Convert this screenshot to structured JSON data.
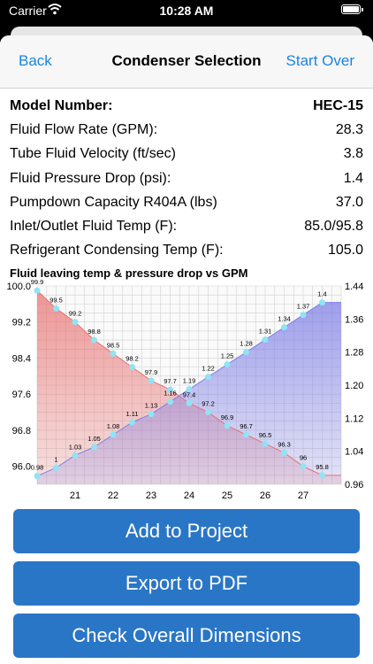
{
  "status_bar": {
    "carrier": "Carrier",
    "time": "10:28 AM"
  },
  "nav": {
    "back": "Back",
    "title": "Condenser Selection",
    "start_over": "Start Over"
  },
  "specs": [
    {
      "label": "Model Number:",
      "value": "HEC-15",
      "bold": true
    },
    {
      "label": "Fluid Flow Rate (GPM):",
      "value": "28.3"
    },
    {
      "label": "Tube Fluid Velocity (ft/sec)",
      "value": "3.8"
    },
    {
      "label": "Fluid Pressure Drop (psi):",
      "value": "1.4"
    },
    {
      "label": "Pumpdown Capacity R404A (lbs)",
      "value": "37.0"
    },
    {
      "label": "Inlet/Outlet Fluid Temp (F):",
      "value": "85.0/95.8"
    },
    {
      "label": "Refrigerant Condensing Temp (F):",
      "value": "105.0"
    }
  ],
  "buttons": {
    "add_to_project": "Add to Project",
    "export_pdf": "Export to PDF",
    "check_dimensions": "Check Overall Dimensions"
  },
  "chart_data": {
    "type": "area",
    "title": "Fluid leaving temp & pressure drop vs GPM",
    "x": [
      20.0,
      20.5,
      21.0,
      21.5,
      22.0,
      22.5,
      23.0,
      23.5,
      24.0,
      24.5,
      25.0,
      25.5,
      26.0,
      26.5,
      27.0,
      27.5,
      28.0
    ],
    "xticks": [
      "21",
      "22",
      "23",
      "24",
      "25",
      "26",
      "27"
    ],
    "xlim": [
      20,
      28
    ],
    "series": [
      {
        "name": "Fluid Leaving Temp",
        "axis": "left",
        "color": "#e87373",
        "values": [
          99.9,
          99.5,
          99.2,
          98.8,
          98.5,
          98.2,
          97.9,
          97.7,
          97.4,
          97.2,
          96.9,
          96.7,
          96.5,
          96.3,
          96,
          95.8,
          95.8
        ],
        "labels": [
          "99.9",
          "99.5",
          "99.2",
          "98.8",
          "98.5",
          "98.2",
          "97.9",
          "97.7",
          "97.4",
          "97.2",
          "96.9",
          "96.7",
          "96.5",
          "96.3",
          "96",
          "95.8",
          ""
        ]
      },
      {
        "name": "Fluid Pressure Drop",
        "axis": "right",
        "color": "#8080e6",
        "values": [
          0.98,
          1,
          1.03,
          1.05,
          1.08,
          1.11,
          1.13,
          1.16,
          1.19,
          1.22,
          1.25,
          1.28,
          1.31,
          1.34,
          1.37,
          1.4,
          1.4
        ],
        "labels": [
          "0.98",
          "1",
          "1.03",
          "1.05",
          "1.08",
          "1.11",
          "1.13",
          "1.16",
          "1.19",
          "1.22",
          "1.25",
          "1.28",
          "1.31",
          "1.34",
          "1.37",
          "1.4",
          ""
        ]
      }
    ],
    "yleft": {
      "ticks": [
        "100.0",
        "99.2",
        "98.4",
        "97.6",
        "96.8",
        "96.0"
      ],
      "lim": [
        95.6,
        100.0
      ]
    },
    "yright": {
      "ticks": [
        "1.44",
        "1.36",
        "1.28",
        "1.20",
        "1.12",
        "1.04",
        "0.96"
      ],
      "lim": [
        0.96,
        1.44
      ]
    },
    "grid": true,
    "legend": "bottom-left",
    "colors": {
      "marker": "#8fe4f5",
      "grid": "#d0d0d0"
    }
  }
}
